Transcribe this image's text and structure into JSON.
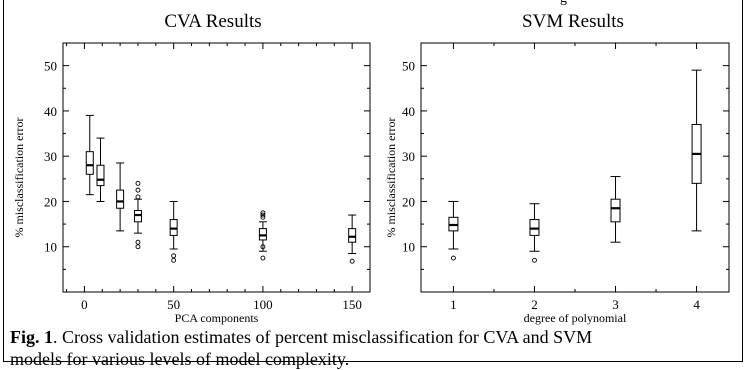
{
  "header_fragment": "g",
  "chart_data": [
    {
      "type": "box",
      "title": "CVA Results",
      "xlabel": "PCA components",
      "ylabel": "% misclassification error",
      "xlim": [
        -12,
        160
      ],
      "ylim": [
        0,
        55
      ],
      "xticks": [
        0,
        50,
        100,
        150
      ],
      "yticks": [
        10,
        20,
        30,
        40,
        50
      ],
      "boxes": [
        {
          "x": 3,
          "whislo": 21.5,
          "q1": 26.0,
          "med": 28.0,
          "q3": 31.0,
          "whishi": 39.0,
          "fliers": []
        },
        {
          "x": 9,
          "whislo": 20.0,
          "q1": 23.5,
          "med": 24.8,
          "q3": 28.0,
          "whishi": 34.0,
          "fliers": []
        },
        {
          "x": 20,
          "whislo": 13.5,
          "q1": 18.5,
          "med": 20.0,
          "q3": 22.5,
          "whishi": 28.5,
          "fliers": []
        },
        {
          "x": 30,
          "whislo": 13.0,
          "q1": 15.5,
          "med": 17.0,
          "q3": 18.0,
          "whishi": 20.5,
          "fliers": [
            24.0,
            22.5,
            21.0,
            11.0,
            10.0
          ]
        },
        {
          "x": 50,
          "whislo": 9.5,
          "q1": 12.5,
          "med": 14.0,
          "q3": 16.0,
          "whishi": 20.0,
          "fliers": [
            8.0,
            7.0
          ]
        },
        {
          "x": 100,
          "whislo": 9.0,
          "q1": 11.5,
          "med": 12.5,
          "q3": 14.0,
          "whishi": 15.5,
          "fliers": [
            17.5,
            17.0,
            16.5,
            10.0,
            7.5
          ]
        },
        {
          "x": 150,
          "whislo": 8.5,
          "q1": 11.0,
          "med": 12.2,
          "q3": 14.0,
          "whishi": 17.0,
          "fliers": [
            6.8
          ]
        }
      ]
    },
    {
      "type": "box",
      "title": "SVM Results",
      "xlabel": "degree of polynomial",
      "ylabel": "% misclassification error",
      "xlim": [
        0.6,
        4.4
      ],
      "ylim": [
        0,
        55
      ],
      "xticks": [
        1,
        2,
        3,
        4
      ],
      "yticks": [
        10,
        20,
        30,
        40,
        50
      ],
      "boxes": [
        {
          "x": 1,
          "whislo": 9.5,
          "q1": 13.5,
          "med": 14.8,
          "q3": 16.5,
          "whishi": 20.0,
          "fliers": [
            7.5
          ]
        },
        {
          "x": 2,
          "whislo": 9.0,
          "q1": 12.5,
          "med": 14.0,
          "q3": 16.0,
          "whishi": 19.5,
          "fliers": [
            7.0
          ]
        },
        {
          "x": 3,
          "whislo": 11.0,
          "q1": 15.5,
          "med": 18.5,
          "q3": 20.5,
          "whishi": 25.5,
          "fliers": []
        },
        {
          "x": 4,
          "whislo": 13.5,
          "q1": 24.0,
          "med": 30.5,
          "q3": 37.0,
          "whishi": 49.0,
          "fliers": []
        }
      ]
    }
  ],
  "caption": {
    "label": "Fig. 1",
    "text": ". Cross validation estimates of percent misclassification for CVA and SVM",
    "text2": "models for various levels of model complexity."
  }
}
